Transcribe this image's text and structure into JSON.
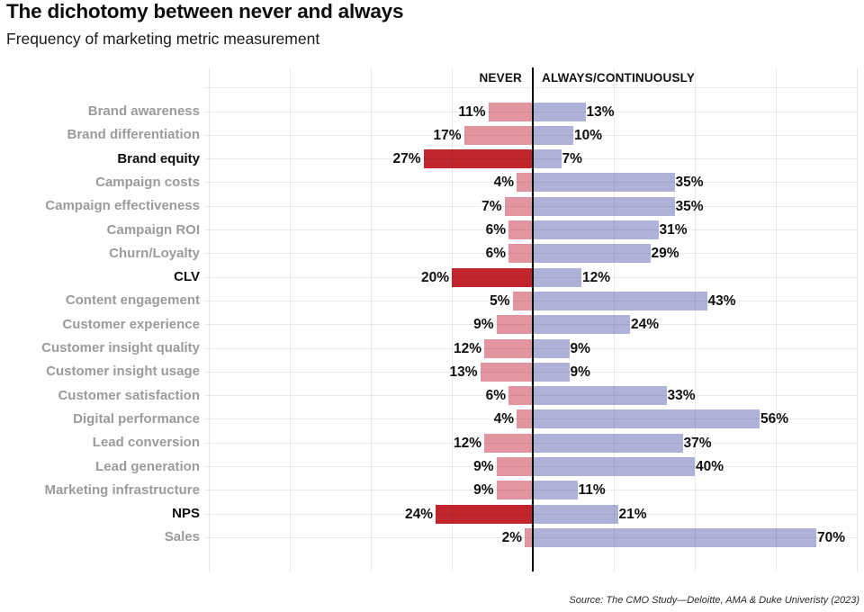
{
  "title": "The dichotomy between never and always",
  "subtitle": "Frequency of marketing metric measurement",
  "columns": {
    "never": "NEVER",
    "always": "ALWAYS/CONTINUOUSLY"
  },
  "source": "Source: The CMO Study—Deloitte, AMA & Duke Univeristy (2023)",
  "colors": {
    "never": "#e2959f",
    "never_highlight": "#c1262d",
    "always": "#aeb1d8",
    "axis": "#000000",
    "category_label": "#9b9b9b",
    "category_label_highlight": "#0d0d0d",
    "value_label": "#111111"
  },
  "chart_data": {
    "type": "bar",
    "orientation": "diverging-horizontal",
    "unit": "%",
    "title": "The dichotomy between never and always",
    "subtitle": "Frequency of marketing metric measurement",
    "axis": {
      "center_value": 0,
      "max_each_side": 80,
      "gridline_step": 20,
      "grid": true
    },
    "categories": [
      "Brand awareness",
      "Brand differentiation",
      "Brand equity",
      "Campaign costs",
      "Campaign effectiveness",
      "Campaign ROI",
      "Churn/Loyalty",
      "CLV",
      "Content engagement",
      "Customer experience",
      "Customer insight quality",
      "Customer insight usage",
      "Customer satisfaction",
      "Digital performance",
      "Lead conversion",
      "Lead generation",
      "Marketing infrastructure",
      "NPS",
      "Sales"
    ],
    "series": [
      {
        "name": "Never",
        "values": [
          11,
          17,
          27,
          4,
          7,
          6,
          6,
          20,
          5,
          9,
          12,
          13,
          6,
          4,
          12,
          9,
          9,
          24,
          2
        ]
      },
      {
        "name": "Always/Continuously",
        "values": [
          13,
          10,
          7,
          35,
          35,
          31,
          29,
          12,
          43,
          24,
          9,
          9,
          33,
          56,
          37,
          40,
          11,
          21,
          70
        ]
      }
    ],
    "value_suffix": "%",
    "highlighted_categories": [
      "Brand equity",
      "CLV",
      "NPS"
    ]
  }
}
